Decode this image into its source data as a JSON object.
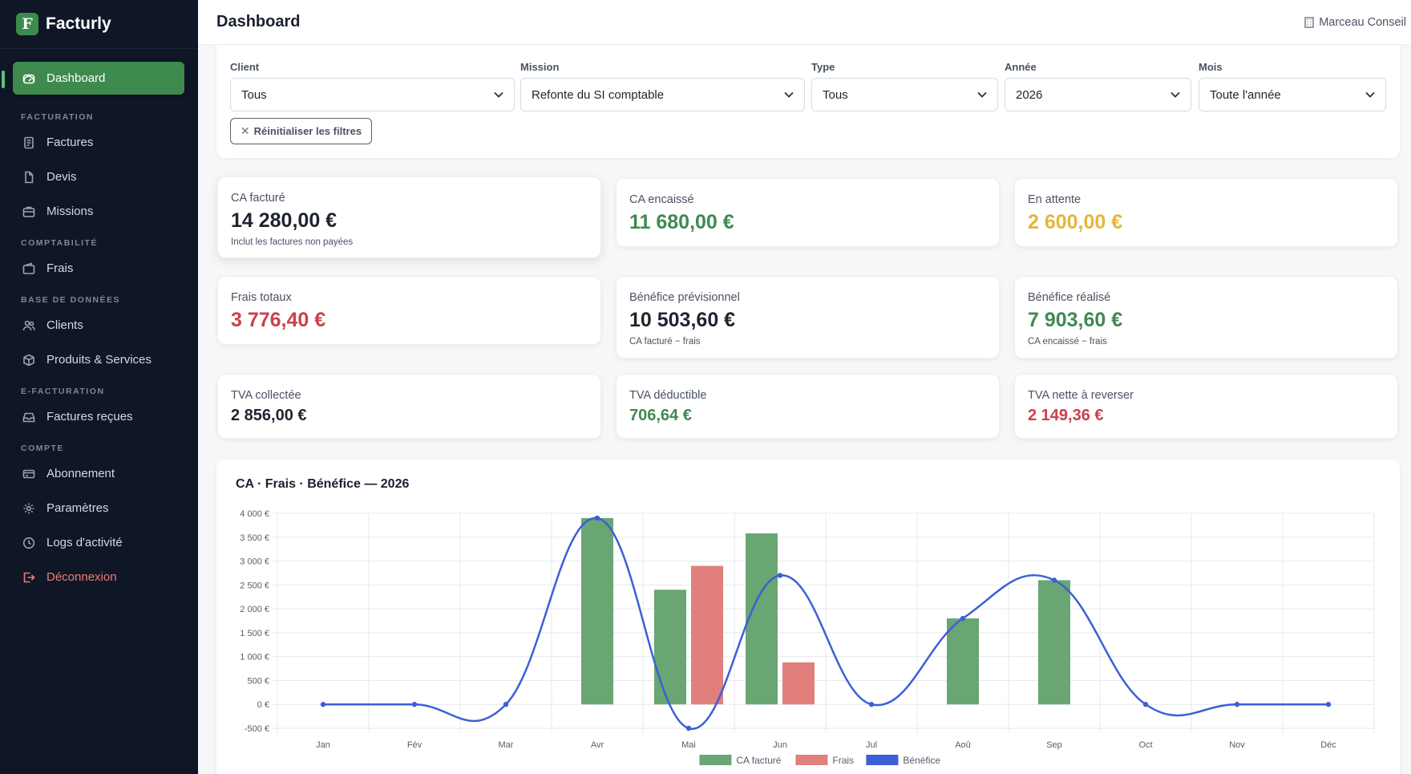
{
  "brand": {
    "logo_letter": "F",
    "name": "Facturly"
  },
  "topbar": {
    "title": "Dashboard",
    "company": "Marceau Conseil"
  },
  "sidebar": {
    "dashboard": "Dashboard",
    "sections": {
      "facturation": "FACTURATION",
      "comptabilite": "COMPTABILITÉ",
      "base": "BASE DE DONNÉES",
      "efacturation": "E-FACTURATION",
      "compte": "COMPTE"
    },
    "items": {
      "factures": "Factures",
      "devis": "Devis",
      "missions": "Missions",
      "frais": "Frais",
      "clients": "Clients",
      "produits": "Produits & Services",
      "factures_recues": "Factures reçues",
      "abonnement": "Abonnement",
      "parametres": "Paramètres",
      "logs": "Logs d'activité",
      "deconnexion": "Déconnexion"
    }
  },
  "filters": {
    "client": {
      "label": "Client",
      "value": "Tous"
    },
    "mission": {
      "label": "Mission",
      "value": "Refonte du SI comptable"
    },
    "type": {
      "label": "Type",
      "value": "Tous"
    },
    "annee": {
      "label": "Année",
      "value": "2026"
    },
    "mois": {
      "label": "Mois",
      "value": "Toute l'année"
    },
    "reset_label": "Réinitialiser les filtres"
  },
  "kpis": {
    "ca_facture": {
      "label": "CA facturé",
      "value": "14 280,00 €",
      "note": "Inclut les factures non payées"
    },
    "ca_encaisse": {
      "label": "CA encaissé",
      "value": "11 680,00 €"
    },
    "en_attente": {
      "label": "En attente",
      "value": "2 600,00 €"
    },
    "frais_totaux": {
      "label": "Frais totaux",
      "value": "3 776,40 €"
    },
    "benefice_prev": {
      "label": "Bénéfice prévisionnel",
      "value": "10 503,60 €",
      "note": "CA facturé − frais"
    },
    "benefice_realise": {
      "label": "Bénéfice réalisé",
      "value": "7 903,60 €",
      "note": "CA encaissé − frais"
    },
    "tva_collectee": {
      "label": "TVA collectée",
      "value": "2 856,00 €"
    },
    "tva_deductible": {
      "label": "TVA déductible",
      "value": "706,64 €"
    },
    "tva_nette": {
      "label": "TVA nette à reverser",
      "value": "2 149,36 €"
    }
  },
  "colors": {
    "accent": "#3e8a4e",
    "green": "#3f8a52",
    "red": "#c9414b",
    "yellow": "#e6b53a",
    "sidebar_bg": "#0f1726"
  },
  "chart_data": {
    "type": "bar",
    "title": "CA · Frais · Bénéfice — 2026",
    "categories": [
      "Jan",
      "Fév",
      "Mar",
      "Avr",
      "Mai",
      "Jun",
      "Jul",
      "Aoû",
      "Sep",
      "Oct",
      "Nov",
      "Déc"
    ],
    "series": [
      {
        "name": "CA facturé",
        "kind": "bar",
        "color": "#6aa574",
        "values": [
          0,
          0,
          0,
          3900,
          2400,
          3580,
          0,
          1800,
          2600,
          0,
          0,
          0
        ]
      },
      {
        "name": "Frais",
        "kind": "bar",
        "color": "#e07f7c",
        "values": [
          0,
          0,
          0,
          0,
          2900,
          880,
          0,
          0,
          0,
          0,
          0,
          0
        ]
      },
      {
        "name": "Bénéfice",
        "kind": "line",
        "color": "#3d5fd6",
        "values": [
          0,
          0,
          0,
          3900,
          -500,
          2700,
          0,
          1800,
          2600,
          0,
          0,
          0
        ]
      }
    ],
    "ylim": [
      -500,
      4000
    ],
    "yticks": [
      "4 000 €",
      "3 500 €",
      "3 000 €",
      "2 500 €",
      "2 000 €",
      "1 500 €",
      "1 000 €",
      "500 €",
      "0 €",
      "-500 €"
    ],
    "ytick_values": [
      4000,
      3500,
      3000,
      2500,
      2000,
      1500,
      1000,
      500,
      0,
      -500
    ],
    "grid": true,
    "legend": "bottom"
  }
}
